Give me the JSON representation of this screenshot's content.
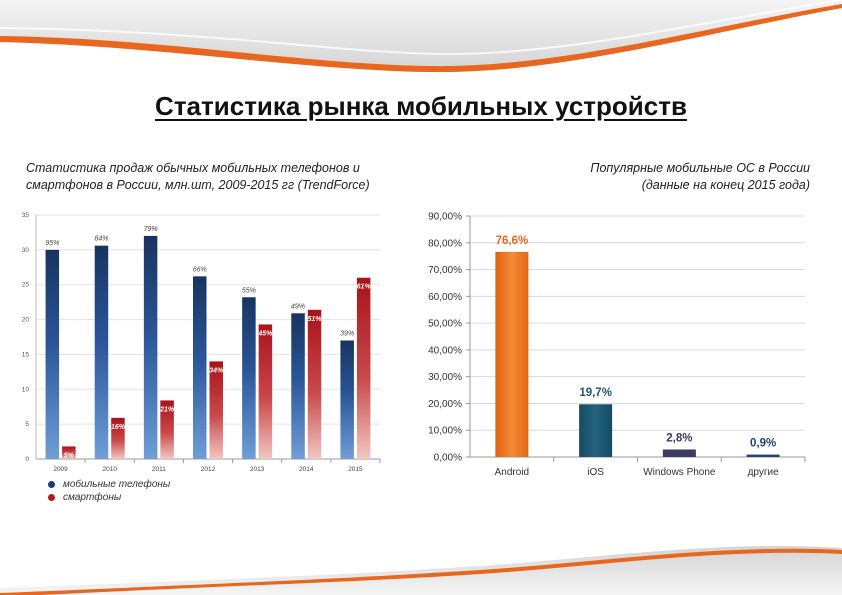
{
  "page": {
    "title": "Статистика рынка мобильных устройств",
    "left_caption": [
      "Статистика продаж обычных мобильных телефонов и",
      "смартфонов в России, млн.шт, 2009-2015 гг (TrendForce)"
    ],
    "right_caption": [
      "Популярные мобильные ОС в России",
      "(данные на конец 2015 года)"
    ],
    "accent_color": "#e8661e"
  },
  "chart_data": [
    {
      "type": "bar",
      "categories": [
        "2009",
        "2010",
        "2011",
        "2012",
        "2013",
        "2014",
        "2015"
      ],
      "ylim": [
        0,
        35
      ],
      "yticks": [
        "0",
        "5",
        "10",
        "15",
        "20",
        "25",
        "30",
        "35"
      ],
      "grid": true,
      "legend": "bottom-left",
      "series": [
        {
          "name": "мобильные телефоны",
          "color": "#1f3d6e",
          "values": [
            30,
            30.6,
            32,
            26.2,
            23.2,
            20.9,
            17
          ],
          "labels": [
            "95%",
            "84%",
            "79%",
            "66%",
            "55%",
            "49%",
            "39%"
          ]
        },
        {
          "name": "смартфоны",
          "color": "#b01a1e",
          "values": [
            1.8,
            5.9,
            8.4,
            14,
            19.3,
            21.4,
            26
          ],
          "labels": [
            "5%",
            "16%",
            "21%",
            "34%",
            "45%",
            "51%",
            "61%"
          ]
        }
      ]
    },
    {
      "type": "bar",
      "categories": [
        "Android",
        "iOS",
        "Windows Phone",
        "другие"
      ],
      "values": [
        76.6,
        19.7,
        2.8,
        0.9
      ],
      "labels": [
        "76,6%",
        "19,7%",
        "2,8%",
        "0,9%"
      ],
      "colors": [
        "#e8661e",
        "#1b5670",
        "#3a3c66",
        "#24427a"
      ],
      "ylim": [
        0,
        90
      ],
      "yticks": [
        "0,00%",
        "10,00%",
        "20,00%",
        "30,00%",
        "40,00%",
        "50,00%",
        "60,00%",
        "70,00%",
        "80,00%",
        "90,00%"
      ],
      "grid": true
    }
  ]
}
